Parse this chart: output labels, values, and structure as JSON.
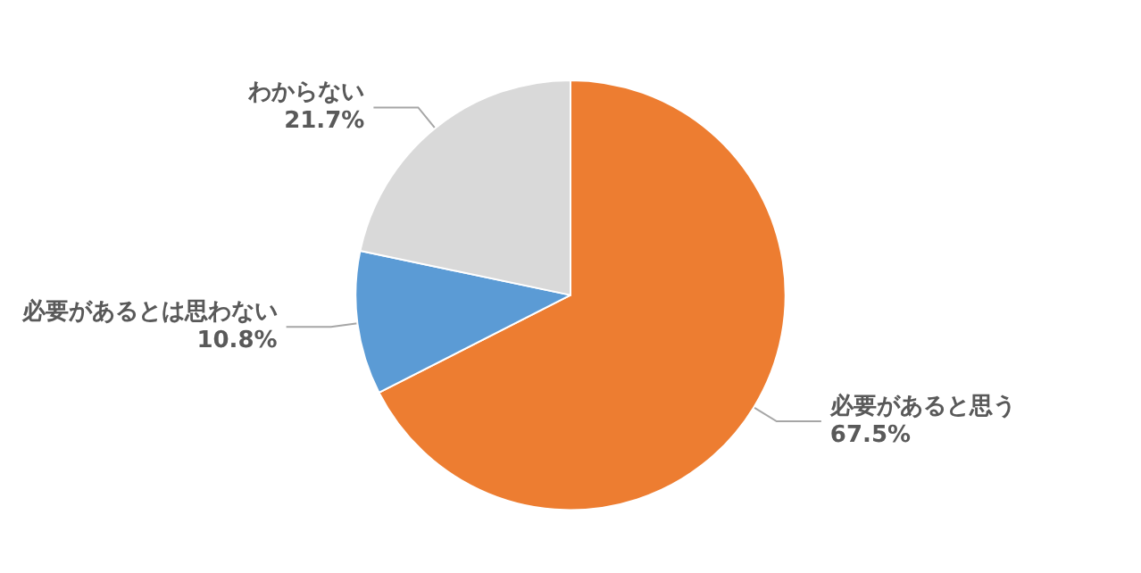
{
  "chart_data": {
    "type": "pie",
    "categories": [
      "必要があると思う",
      "必要があるとは思わない",
      "わからない"
    ],
    "values": [
      67.5,
      10.8,
      21.7
    ],
    "colors": [
      "#ed7d31",
      "#5b9bd5",
      "#d9d9d9"
    ],
    "value_labels": [
      "67.5%",
      "10.8%",
      "21.7%"
    ]
  }
}
